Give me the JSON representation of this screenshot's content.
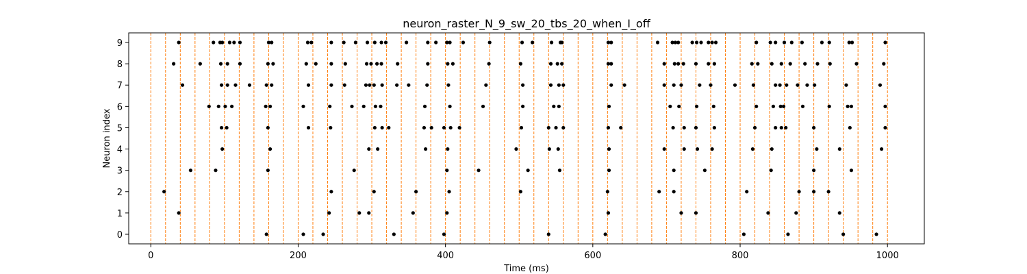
{
  "chart_data": {
    "type": "scatter",
    "title": "neuron_raster_N_9_sw_20_tbs_20_when_I_off",
    "xlabel": "Time (ms)",
    "ylabel": "Neuron index",
    "xlim": [
      -30,
      1050
    ],
    "ylim": [
      -0.45,
      9.45
    ],
    "x_ticks": [
      0,
      200,
      400,
      600,
      800,
      1000
    ],
    "y_ticks": [
      0,
      1,
      2,
      3,
      4,
      5,
      6,
      7,
      8,
      9
    ],
    "grid": false,
    "vlines": {
      "x": [
        0,
        20,
        40,
        60,
        80,
        100,
        120,
        140,
        160,
        180,
        200,
        220,
        240,
        260,
        280,
        300,
        320,
        340,
        360,
        380,
        400,
        420,
        440,
        460,
        480,
        500,
        520,
        540,
        560,
        580,
        600,
        620,
        640,
        660,
        680,
        700,
        720,
        740,
        760,
        780,
        800,
        820,
        840,
        860,
        880,
        900,
        920,
        940,
        960,
        980,
        1000
      ],
      "color": "#ff7f0e",
      "style": "dashed"
    },
    "marker_color": "#000000",
    "spikes": [
      {
        "neuron": 0,
        "times": [
          157,
          207,
          234,
          330,
          398,
          540,
          617,
          805,
          865,
          940,
          985
        ]
      },
      {
        "neuron": 1,
        "times": [
          38,
          242,
          283,
          296,
          356,
          402,
          621,
          720,
          740,
          838,
          876,
          935
        ]
      },
      {
        "neuron": 2,
        "times": [
          18,
          245,
          303,
          360,
          405,
          502,
          620,
          690,
          710,
          809,
          880,
          900,
          920
        ]
      },
      {
        "neuron": 3,
        "times": [
          54,
          88,
          159,
          276,
          402,
          445,
          512,
          555,
          622,
          710,
          752,
          842,
          900,
          951
        ]
      },
      {
        "neuron": 4,
        "times": [
          97,
          162,
          296,
          308,
          373,
          403,
          496,
          541,
          553,
          622,
          697,
          724,
          742,
          762,
          817,
          843,
          904,
          935,
          992
        ]
      },
      {
        "neuron": 5,
        "times": [
          96,
          103,
          159,
          214,
          244,
          304,
          314,
          323,
          371,
          381,
          398,
          407,
          419,
          503,
          540,
          550,
          560,
          621,
          638,
          709,
          724,
          740,
          765,
          820,
          848,
          856,
          862,
          900,
          949,
          997
        ]
      },
      {
        "neuron": 6,
        "times": [
          79,
          92,
          101,
          110,
          156,
          162,
          207,
          243,
          273,
          289,
          305,
          312,
          372,
          406,
          451,
          505,
          547,
          554,
          622,
          705,
          717,
          741,
          764,
          822,
          845,
          855,
          859,
          885,
          921,
          946,
          951,
          997
        ]
      },
      {
        "neuron": 7,
        "times": [
          43,
          96,
          104,
          115,
          134,
          157,
          164,
          214,
          245,
          263,
          292,
          297,
          303,
          314,
          334,
          350,
          375,
          404,
          455,
          505,
          543,
          554,
          560,
          625,
          643,
          697,
          710,
          720,
          745,
          760,
          793,
          818,
          848,
          854,
          863,
          878,
          891,
          901,
          944,
          990
        ]
      },
      {
        "neuron": 8,
        "times": [
          31,
          67,
          95,
          104,
          121,
          159,
          166,
          211,
          224,
          245,
          264,
          293,
          299,
          307,
          313,
          335,
          376,
          403,
          410,
          459,
          502,
          543,
          552,
          558,
          621,
          625,
          697,
          711,
          716,
          723,
          740,
          757,
          765,
          816,
          824,
          843,
          856,
          868,
          888,
          905,
          922,
          958,
          995
        ]
      },
      {
        "neuron": 9,
        "times": [
          38,
          85,
          94,
          97,
          107,
          113,
          121,
          160,
          164,
          213,
          218,
          245,
          262,
          278,
          294,
          304,
          313,
          319,
          347,
          376,
          387,
          402,
          406,
          424,
          460,
          504,
          518,
          544,
          556,
          558,
          621,
          625,
          688,
          708,
          712,
          716,
          735,
          741,
          747,
          757,
          762,
          767,
          822,
          841,
          848,
          860,
          870,
          884,
          911,
          921,
          948,
          952,
          997
        ]
      }
    ]
  }
}
